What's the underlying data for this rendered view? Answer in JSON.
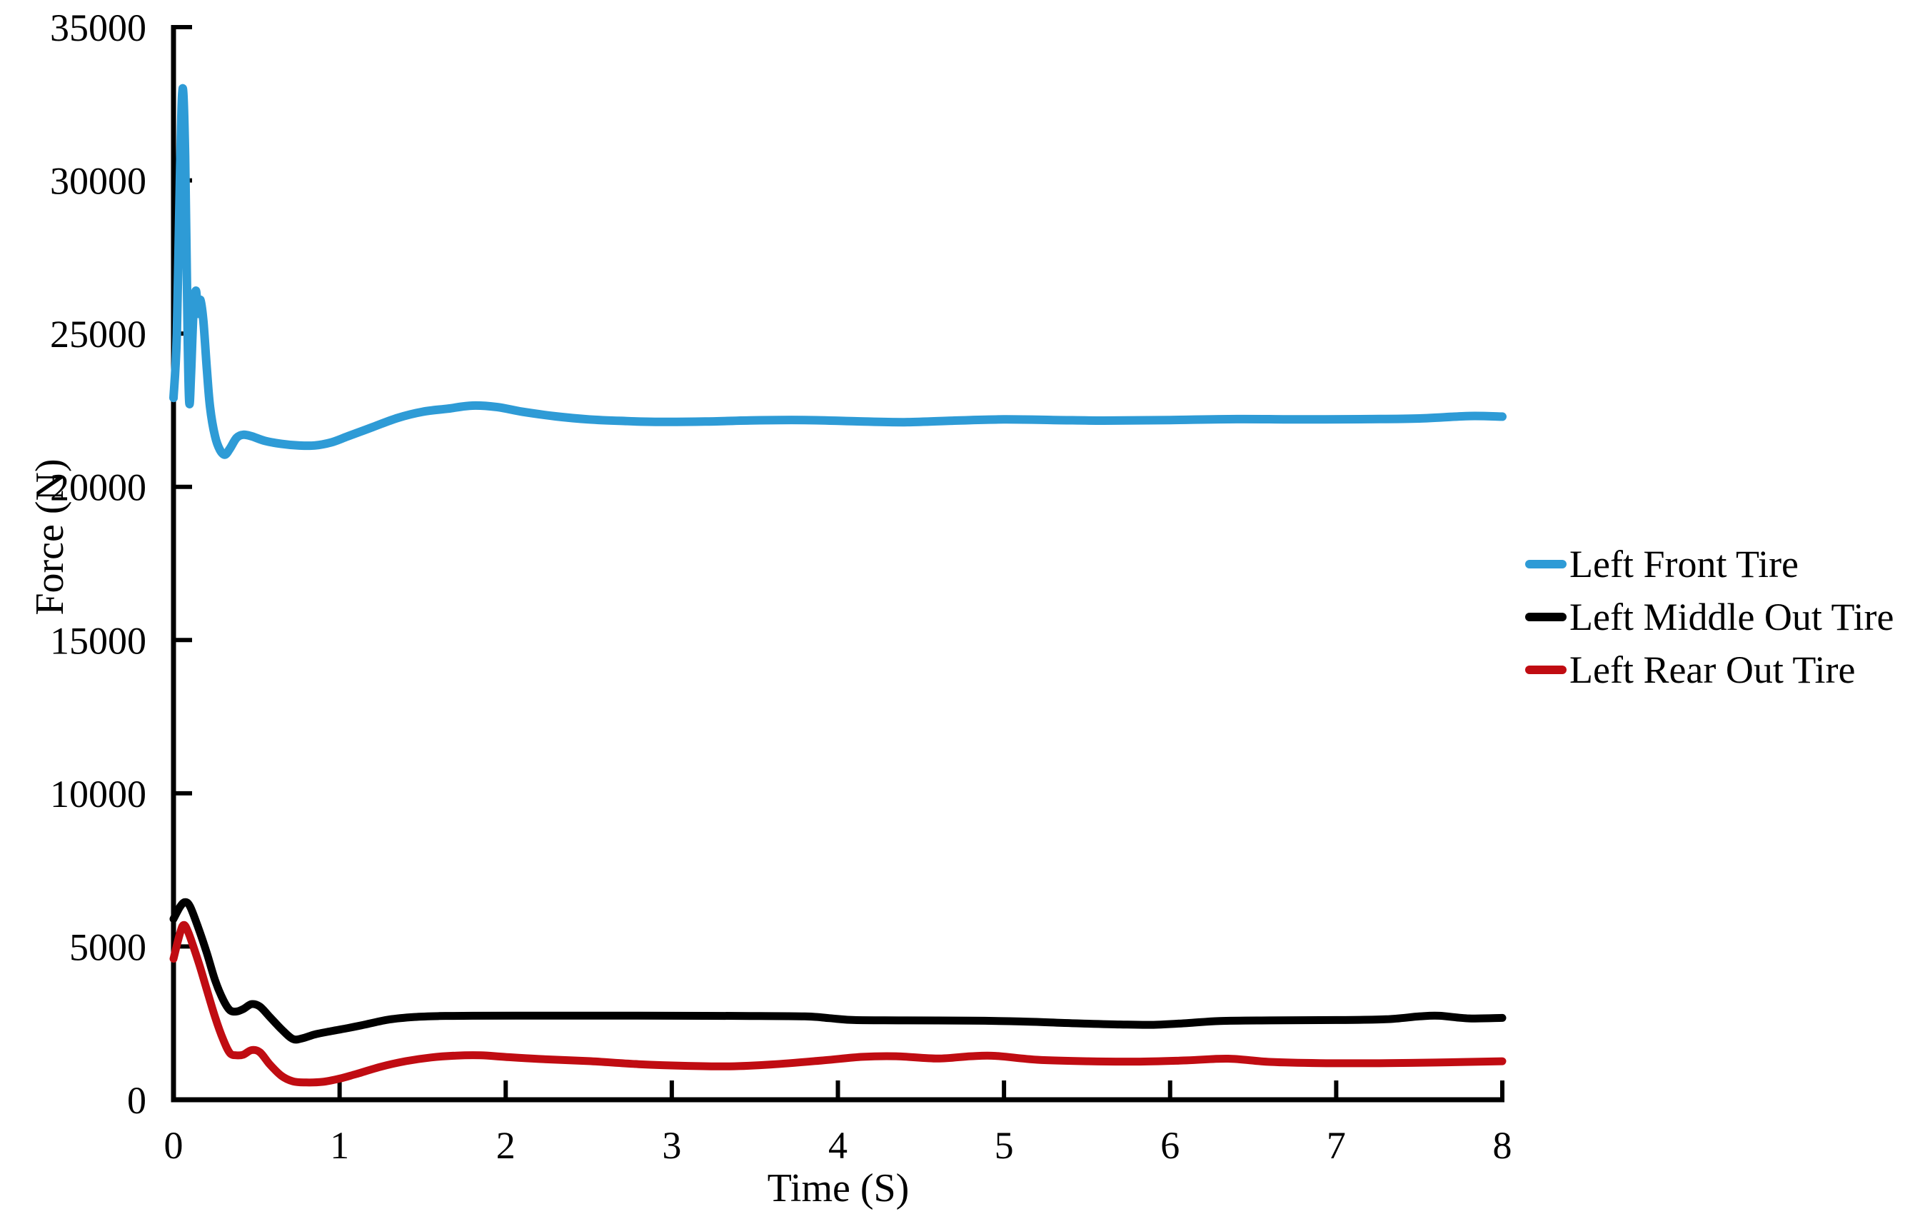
{
  "figure": {
    "background": "#ffffff",
    "text_color": "#000000",
    "axis_color": "#000000"
  },
  "chart_data": {
    "type": "line",
    "title": "",
    "xlabel": "Time (S)",
    "ylabel": "Force (N)",
    "xlim": [
      0,
      8
    ],
    "ylim": [
      0,
      35000
    ],
    "x_ticks": [
      0,
      1,
      2,
      3,
      4,
      5,
      6,
      7,
      8
    ],
    "y_ticks": [
      0,
      5000,
      10000,
      15000,
      20000,
      25000,
      30000,
      35000
    ],
    "grid": false,
    "legend_position": "right-center",
    "series": [
      {
        "name": "Left Front Tire",
        "color": "#2E9BD6",
        "line_width": 12,
        "points": [
          [
            0,
            22900
          ],
          [
            0.02,
            25000
          ],
          [
            0.04,
            30500
          ],
          [
            0.055,
            33000
          ],
          [
            0.07,
            30800
          ],
          [
            0.085,
            25000
          ],
          [
            0.095,
            22750
          ],
          [
            0.105,
            23600
          ],
          [
            0.12,
            25700
          ],
          [
            0.135,
            26400
          ],
          [
            0.148,
            25650
          ],
          [
            0.162,
            26100
          ],
          [
            0.18,
            25400
          ],
          [
            0.2,
            23900
          ],
          [
            0.22,
            22600
          ],
          [
            0.25,
            21650
          ],
          [
            0.28,
            21200
          ],
          [
            0.31,
            21050
          ],
          [
            0.34,
            21250
          ],
          [
            0.38,
            21600
          ],
          [
            0.42,
            21700
          ],
          [
            0.47,
            21650
          ],
          [
            0.55,
            21500
          ],
          [
            0.65,
            21400
          ],
          [
            0.75,
            21350
          ],
          [
            0.85,
            21350
          ],
          [
            0.95,
            21450
          ],
          [
            1.05,
            21650
          ],
          [
            1.2,
            21950
          ],
          [
            1.35,
            22250
          ],
          [
            1.5,
            22450
          ],
          [
            1.65,
            22550
          ],
          [
            1.8,
            22650
          ],
          [
            1.95,
            22600
          ],
          [
            2.1,
            22450
          ],
          [
            2.3,
            22300
          ],
          [
            2.5,
            22200
          ],
          [
            2.7,
            22150
          ],
          [
            2.9,
            22120
          ],
          [
            3.2,
            22130
          ],
          [
            3.5,
            22170
          ],
          [
            3.8,
            22180
          ],
          [
            4.1,
            22140
          ],
          [
            4.4,
            22110
          ],
          [
            4.7,
            22160
          ],
          [
            5,
            22200
          ],
          [
            5.3,
            22180
          ],
          [
            5.6,
            22160
          ],
          [
            6,
            22180
          ],
          [
            6.4,
            22210
          ],
          [
            6.8,
            22200
          ],
          [
            7.2,
            22210
          ],
          [
            7.5,
            22230
          ],
          [
            7.8,
            22310
          ],
          [
            8,
            22290
          ]
        ]
      },
      {
        "name": "Left Middle Out Tire",
        "color": "#000000",
        "line_width": 11,
        "points": [
          [
            0,
            5900
          ],
          [
            0.04,
            6300
          ],
          [
            0.07,
            6450
          ],
          [
            0.1,
            6300
          ],
          [
            0.15,
            5600
          ],
          [
            0.2,
            4800
          ],
          [
            0.25,
            3900
          ],
          [
            0.3,
            3250
          ],
          [
            0.34,
            2920
          ],
          [
            0.38,
            2880
          ],
          [
            0.42,
            2960
          ],
          [
            0.47,
            3120
          ],
          [
            0.52,
            3040
          ],
          [
            0.58,
            2700
          ],
          [
            0.65,
            2300
          ],
          [
            0.72,
            1980
          ],
          [
            0.78,
            2010
          ],
          [
            0.85,
            2130
          ],
          [
            0.95,
            2240
          ],
          [
            1.05,
            2340
          ],
          [
            1.15,
            2450
          ],
          [
            1.3,
            2620
          ],
          [
            1.45,
            2700
          ],
          [
            1.6,
            2730
          ],
          [
            1.8,
            2740
          ],
          [
            2.2,
            2745
          ],
          [
            2.6,
            2745
          ],
          [
            3,
            2740
          ],
          [
            3.4,
            2735
          ],
          [
            3.8,
            2720
          ],
          [
            3.95,
            2660
          ],
          [
            4.1,
            2600
          ],
          [
            4.4,
            2590
          ],
          [
            4.8,
            2580
          ],
          [
            5.1,
            2555
          ],
          [
            5.4,
            2500
          ],
          [
            5.7,
            2455
          ],
          [
            5.9,
            2445
          ],
          [
            6.1,
            2500
          ],
          [
            6.3,
            2570
          ],
          [
            6.6,
            2590
          ],
          [
            7,
            2600
          ],
          [
            7.3,
            2625
          ],
          [
            7.5,
            2720
          ],
          [
            7.62,
            2740
          ],
          [
            7.8,
            2655
          ],
          [
            8,
            2670
          ]
        ]
      },
      {
        "name": "Left Rear Out Tire",
        "color": "#C00C12",
        "line_width": 11,
        "points": [
          [
            0,
            4600
          ],
          [
            0.035,
            5350
          ],
          [
            0.06,
            5700
          ],
          [
            0.09,
            5450
          ],
          [
            0.15,
            4500
          ],
          [
            0.2,
            3600
          ],
          [
            0.25,
            2700
          ],
          [
            0.3,
            1950
          ],
          [
            0.34,
            1520
          ],
          [
            0.38,
            1450
          ],
          [
            0.42,
            1470
          ],
          [
            0.47,
            1620
          ],
          [
            0.52,
            1550
          ],
          [
            0.58,
            1150
          ],
          [
            0.65,
            780
          ],
          [
            0.72,
            600
          ],
          [
            0.8,
            565
          ],
          [
            0.9,
            585
          ],
          [
            1,
            690
          ],
          [
            1.1,
            840
          ],
          [
            1.25,
            1080
          ],
          [
            1.4,
            1260
          ],
          [
            1.55,
            1380
          ],
          [
            1.7,
            1440
          ],
          [
            1.85,
            1450
          ],
          [
            2,
            1395
          ],
          [
            2.2,
            1330
          ],
          [
            2.5,
            1260
          ],
          [
            2.8,
            1160
          ],
          [
            3.1,
            1105
          ],
          [
            3.35,
            1090
          ],
          [
            3.6,
            1150
          ],
          [
            3.9,
            1280
          ],
          [
            4.15,
            1400
          ],
          [
            4.35,
            1420
          ],
          [
            4.6,
            1345
          ],
          [
            4.8,
            1420
          ],
          [
            4.95,
            1430
          ],
          [
            5.2,
            1305
          ],
          [
            5.5,
            1255
          ],
          [
            5.8,
            1245
          ],
          [
            6.1,
            1285
          ],
          [
            6.35,
            1340
          ],
          [
            6.6,
            1235
          ],
          [
            6.9,
            1195
          ],
          [
            7.3,
            1195
          ],
          [
            7.6,
            1215
          ],
          [
            8,
            1255
          ]
        ]
      }
    ]
  }
}
